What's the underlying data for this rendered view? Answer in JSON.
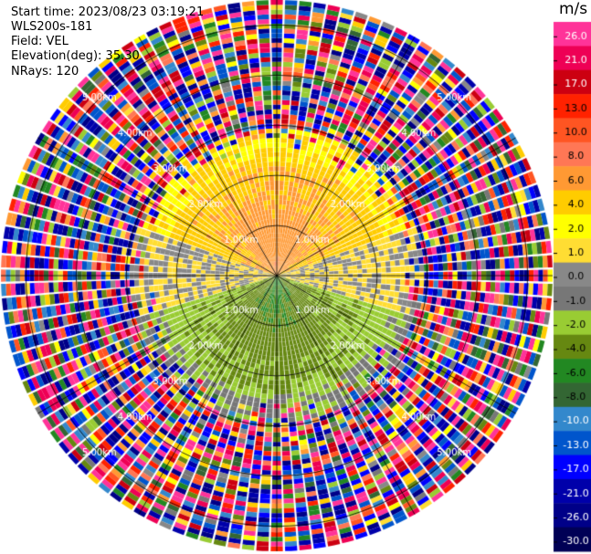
{
  "header": {
    "start_time": "Start time: 2023/08/23 03:19:21",
    "instrument": "WLS200s-181",
    "field": "Field: VEL",
    "elevation": "Elevation(deg): 35.30",
    "nrays": "NRays: 120"
  },
  "colorbar": {
    "unit": "m/s",
    "ticks": [
      "26.0",
      "21.0",
      "17.0",
      "13.0",
      "10.0",
      "8.0",
      "6.0",
      "4.0",
      "2.0",
      "1.0",
      "0.0",
      "-1.0",
      "-2.0",
      "-4.0",
      "-6.0",
      "-8.0",
      "-10.0",
      "-13.0",
      "-17.0",
      "-21.0",
      "-26.0",
      "-30.0"
    ],
    "colors": [
      "#ff3399",
      "#ee0055",
      "#cc0011",
      "#ff2200",
      "#ff5522",
      "#ff7755",
      "#ff9933",
      "#ffcc00",
      "#ffff00",
      "#ffdd33",
      "#888888",
      "#777777",
      "#99cc33",
      "#668811",
      "#228822",
      "#336633",
      "#3388cc",
      "#0055cc",
      "#0000ff",
      "#0000aa",
      "#000088",
      "#000055"
    ]
  },
  "chart_data": {
    "type": "ppi",
    "field": "VEL",
    "units": "m/s",
    "nrays": 120,
    "range_rings_km": [
      1.0,
      2.0,
      3.0,
      4.0,
      5.0
    ],
    "ring_labels": [
      "1.00km",
      "2.00km",
      "3.00km",
      "4.00km",
      "5.00km"
    ],
    "max_range_km": 5.5,
    "spokes_deg": [
      0,
      30,
      60,
      90,
      120,
      150,
      180,
      210,
      240,
      270,
      300,
      330
    ],
    "velocity_pattern": {
      "north_sector": "positive 2.0 to 6.0 m/s (yellow/orange), strongest near 0-1.5 km",
      "east_west": "near 0.0 m/s (grey)",
      "south_sector": "negative -2.0 to -8.0 m/s (green)",
      "beyond_3km": "noise (all values)"
    }
  }
}
